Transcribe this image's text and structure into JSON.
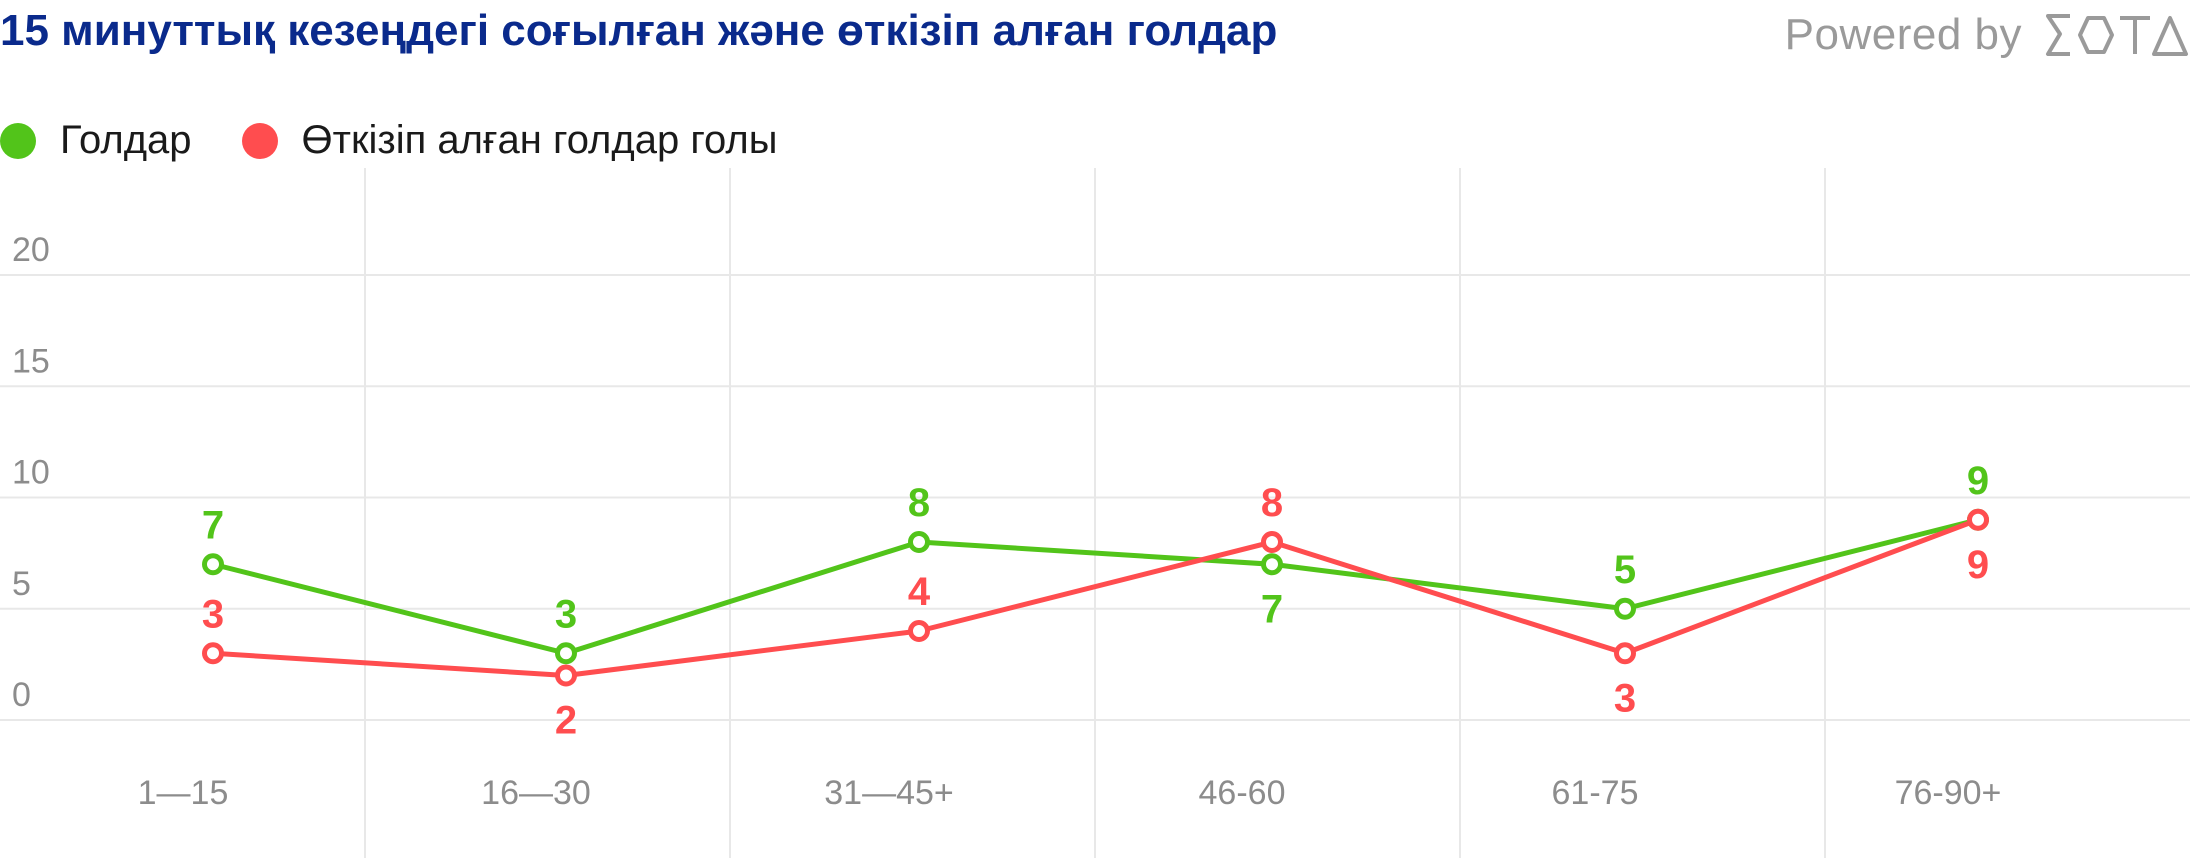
{
  "title": "15 минуттық кезеңдегі соғылған және өткізіп алған голдар",
  "branding": {
    "powered_label": "Powered by",
    "logo_text": "SOTA"
  },
  "colors": {
    "title": "#0a2a8c",
    "goals": "#52c41a",
    "conceded": "#ff4d4f",
    "grid": "#e8e8e8",
    "tick": "#8c8c8c"
  },
  "legend": [
    {
      "label": "Голдар",
      "color": "#52c41a"
    },
    {
      "label": "Өткізіп алған голдар голы",
      "color": "#ff4d4f"
    }
  ],
  "chart_data": {
    "type": "line",
    "categories": [
      "1—15",
      "16—30",
      "31—45+",
      "46-60",
      "61-75",
      "76-90+"
    ],
    "y_ticks": [
      "0",
      "5",
      "10",
      "15",
      "20"
    ],
    "ylim": [
      0,
      20
    ],
    "grid": true,
    "legend_position": "top-left",
    "series": [
      {
        "name": "Голдар",
        "color": "#52c41a",
        "values": [
          7,
          3,
          8,
          7,
          5,
          9
        ]
      },
      {
        "name": "Өткізіп алған голдар голы",
        "color": "#ff4d4f",
        "values": [
          3,
          2,
          4,
          8,
          3,
          9
        ]
      }
    ]
  }
}
